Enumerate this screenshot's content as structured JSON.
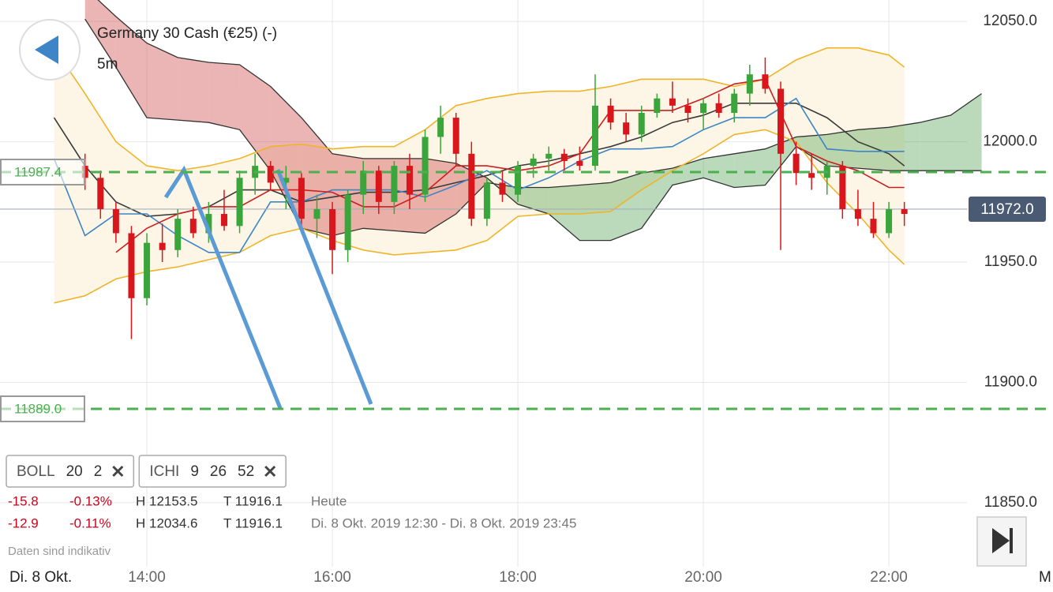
{
  "chart_data": {
    "type": "candlestick",
    "title": "Germany 30 Cash (€25) (-)",
    "subtitle": "5m",
    "xlim": [
      745,
      1370
    ],
    "ylim": [
      11823.4,
      12058.9
    ],
    "xticks": [
      {
        "value": 840,
        "label": "14:00"
      },
      {
        "value": 960,
        "label": "16:00"
      },
      {
        "value": 1080,
        "label": "18:00"
      },
      {
        "value": 1200,
        "label": "20:00"
      },
      {
        "value": 1320,
        "label": "22:00"
      }
    ],
    "yticks": [
      {
        "value": 12050,
        "label": "12050.0"
      },
      {
        "value": 12000,
        "label": "12000.0"
      },
      {
        "value": 11950,
        "label": "11950.0"
      },
      {
        "value": 11900,
        "label": "11900.0"
      },
      {
        "value": 11850,
        "label": "11850.0"
      }
    ],
    "grid": true,
    "x_start_label": "Di. 8 Okt.",
    "x_end_label": "M",
    "up_color": "#3aa53a",
    "down_color": "#d8161b",
    "x": [
      800,
      810,
      820,
      830,
      840,
      850,
      860,
      870,
      880,
      890,
      900,
      910,
      920,
      930,
      940,
      950,
      960,
      970,
      980,
      990,
      1000,
      1010,
      1020,
      1030,
      1040,
      1050,
      1060,
      1070,
      1080,
      1090,
      1100,
      1110,
      1120,
      1130,
      1140,
      1150,
      1160,
      1170,
      1180,
      1190,
      1200,
      1210,
      1220,
      1230,
      1240,
      1250,
      1260,
      1270,
      1280,
      1290,
      1300,
      1310,
      1320,
      1330
    ],
    "open": [
      11990,
      11985,
      11972,
      11962,
      11935,
      11958,
      11955,
      11968,
      11962,
      11970,
      11965,
      11985,
      11990,
      11983,
      11985,
      11968,
      11972,
      11955,
      11978,
      11988,
      11975,
      11990,
      11978,
      12002,
      12010,
      11995,
      11968,
      11983,
      11978,
      11990,
      11993,
      11995,
      11992,
      11990,
      12015,
      12008,
      12003,
      12012,
      12018,
      12015,
      12012,
      12016,
      12012,
      12020,
      12028,
      12022,
      11995,
      11987,
      11985,
      11990,
      11972,
      11968,
      11962,
      11972
    ],
    "high": [
      11995,
      11988,
      11975,
      11965,
      11962,
      11966,
      11972,
      11973,
      11975,
      11980,
      11988,
      11995,
      11992,
      11990,
      11987,
      11978,
      11975,
      11980,
      11992,
      11990,
      11992,
      11995,
      12005,
      12015,
      12012,
      12000,
      11985,
      11988,
      11992,
      11995,
      11998,
      11997,
      11998,
      12028,
      12018,
      12012,
      12015,
      12020,
      12025,
      12018,
      12018,
      12020,
      12022,
      12032,
      12035,
      12025,
      12000,
      11995,
      11992,
      11992,
      11980,
      11975,
      11975,
      11975
    ],
    "low": [
      11980,
      11968,
      11958,
      11918,
      11932,
      11950,
      11952,
      11960,
      11958,
      11963,
      11962,
      11978,
      11980,
      11972,
      11962,
      11960,
      11945,
      11950,
      11970,
      11970,
      11970,
      11972,
      11975,
      11995,
      11990,
      11965,
      11965,
      11975,
      11975,
      11985,
      11988,
      11988,
      11988,
      11988,
      12005,
      12000,
      12000,
      12010,
      12012,
      12008,
      12005,
      12010,
      12008,
      12015,
      12020,
      11955,
      11982,
      11980,
      11978,
      11968,
      11965,
      11960,
      11960,
      11965
    ],
    "close": [
      11985,
      11972,
      11962,
      11935,
      11958,
      11955,
      11968,
      11962,
      11970,
      11965,
      11985,
      11990,
      11983,
      11985,
      11968,
      11972,
      11955,
      11978,
      11988,
      11975,
      11990,
      11978,
      12002,
      12010,
      11995,
      11968,
      11983,
      11978,
      11990,
      11993,
      11995,
      11992,
      11990,
      12015,
      12008,
      12003,
      12012,
      12018,
      12015,
      12012,
      12016,
      12012,
      12020,
      12028,
      12022,
      11995,
      11987,
      11985,
      11990,
      11972,
      11968,
      11962,
      11972,
      11970
    ],
    "overlay_x": [
      780,
      800,
      820,
      840,
      860,
      880,
      900,
      920,
      940,
      960,
      980,
      1000,
      1020,
      1040,
      1060,
      1080,
      1100,
      1120,
      1140,
      1160,
      1180,
      1200,
      1220,
      1240,
      1260,
      1280,
      1300,
      1320,
      1330
    ],
    "bands": {
      "color": "#f0b429",
      "fill": "#fdf6e6",
      "upper": [
        12039,
        12020,
        12000,
        11990,
        11988,
        11990,
        11993,
        11998,
        11999,
        11997,
        11998,
        11998,
        12005,
        12015,
        12018,
        12020,
        12021,
        12021,
        12023,
        12026,
        12026,
        12026,
        12023,
        12026,
        12034,
        12039,
        12039,
        12036,
        12031
      ],
      "lower": [
        11933,
        11936,
        11943,
        11946,
        11948,
        11951,
        11954,
        11961,
        11964,
        11959,
        11955,
        11953,
        11954,
        11955,
        11959,
        11969,
        11970,
        11970,
        11971,
        11980,
        11988,
        11995,
        12003,
        12005,
        12000,
        11983,
        11970,
        11955,
        11949
      ]
    },
    "lines": [
      {
        "color": "#3a3a3a",
        "values": [
          12010,
          11990,
          11975,
          11969,
          11970,
          11973,
          11980,
          11980,
          11975,
          11977,
          11979,
          11979,
          11980,
          11983,
          11986,
          11990,
          11992,
          11995,
          11998,
          12002,
          12008,
          12011,
          12016,
          12016,
          12016,
          12010,
          12000,
          11995,
          11990
        ]
      },
      {
        "color": "#3d85c6",
        "values": [
          11993,
          11961,
          11970,
          11970,
          11961,
          11954,
          11954,
          11975,
          11975,
          11980,
          11980,
          11980,
          11977,
          11982,
          11988,
          11980,
          11985,
          11992,
          11997,
          11997,
          11998,
          12005,
          12010,
          12010,
          12018,
          11997,
          11996,
          11996,
          11996
        ]
      },
      {
        "color": "#cc1f1f",
        "values": [
          null,
          null,
          11954,
          11964,
          11970,
          11973,
          11973,
          11980,
          11980,
          11979,
          11973,
          11973,
          11979,
          11990,
          11990,
          11988,
          11990,
          11995,
          12013,
          12013,
          12013,
          12018,
          12024,
          12026,
          11998,
          11992,
          11988,
          11981,
          11981
        ]
      }
    ],
    "cloud": {
      "line_color": "#333333",
      "up_color": "rgba(60,150,60,0.35)",
      "down_color": "rgba(205,70,70,0.4)",
      "x": [
        800,
        820,
        840,
        860,
        880,
        900,
        920,
        940,
        960,
        980,
        1000,
        1020,
        1040,
        1060,
        1080,
        1100,
        1120,
        1140,
        1160,
        1180,
        1200,
        1220,
        1240,
        1260,
        1280,
        1300,
        1320,
        1340,
        1360,
        1380
      ],
      "span_a": [
        12051,
        12031,
        12010,
        12009,
        12008,
        12005,
        11988,
        11964,
        11961,
        11964,
        11963,
        11962,
        11970,
        11983,
        11981,
        11981,
        11982,
        11983,
        11987,
        11989,
        11993,
        11995,
        11997,
        12002,
        12003,
        12005,
        12006,
        12008,
        12011,
        12020
      ],
      "span_b": [
        12064,
        12052,
        12041,
        12035,
        12033,
        12032,
        12023,
        12010,
        11995,
        11993,
        11993,
        11993,
        11991,
        11985,
        11974,
        11970,
        11959,
        11959,
        11964,
        11982,
        11985,
        11981,
        11982,
        11998,
        11990,
        11989,
        11988,
        11988,
        11988,
        11988
      ]
    },
    "levels": [
      11987.4,
      {
        "value": 11889.0,
        "label": "11889.0"
      }
    ],
    "level_color": "#4caf50",
    "last_price": {
      "value": 11972.0,
      "label": "11972.0"
    },
    "last_price_color": "#4a5a73"
  },
  "ui": {
    "indicators": [
      {
        "name": "BOLL",
        "params": [
          20,
          2
        ]
      },
      {
        "name": "ICHI",
        "params": [
          9,
          26,
          52
        ]
      }
    ],
    "stats": [
      [
        "-15.8",
        "-0.13%",
        "H 12153.5",
        "T 11916.1",
        "Heute"
      ],
      [
        "-12.9",
        "-0.11%",
        "H 12034.6",
        "T 11916.1",
        "Di. 8 Okt. 2019 12:30 - Di. 8 Okt. 2019 23:45"
      ]
    ],
    "footer": "Daten sind indikativ"
  }
}
